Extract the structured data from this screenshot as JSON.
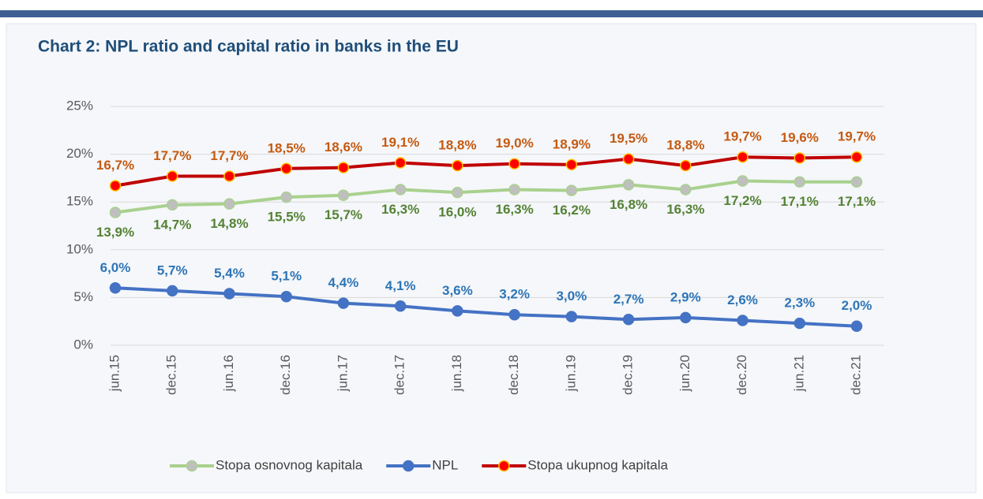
{
  "chart_data": {
    "type": "line",
    "title": "Chart 2: NPL ratio and  capital ratio in banks in the EU",
    "categories": [
      "jun.15",
      "dec.15",
      "jun.16",
      "dec.16",
      "jun.17",
      "dec.17",
      "jun.18",
      "dec.18",
      "jun.19",
      "dec.19",
      "jun.20",
      "dec.20",
      "jun.21",
      "dec.21"
    ],
    "ylim": [
      0,
      25
    ],
    "yticks": [
      {
        "value": 0,
        "label": "0%"
      },
      {
        "value": 5,
        "label": "5%"
      },
      {
        "value": 10,
        "label": "10%"
      },
      {
        "value": 15,
        "label": "15%"
      },
      {
        "value": 20,
        "label": "20%"
      },
      {
        "value": 25,
        "label": "25%"
      }
    ],
    "grid": true,
    "legend": "bottom",
    "series": [
      {
        "name": "Stopa osnovnog kapitala",
        "color": "#a9d18e",
        "marker_color": "#bfbfbf",
        "label_color": "#548235",
        "label_position": "below",
        "values": [
          13.9,
          14.7,
          14.8,
          15.5,
          15.7,
          16.3,
          16.0,
          16.3,
          16.2,
          16.8,
          16.3,
          17.2,
          17.1,
          17.1
        ],
        "value_labels": [
          "13,9%",
          "14,7%",
          "14,8%",
          "15,5%",
          "15,7%",
          "16,3%",
          "16,0%",
          "16,3%",
          "16,2%",
          "16,8%",
          "16,3%",
          "17,2%",
          "17,1%",
          "17,1%"
        ]
      },
      {
        "name": "NPL",
        "color": "#4472c4",
        "marker_color": "#4472c4",
        "label_color": "#2e75b6",
        "label_position": "above",
        "values": [
          6.0,
          5.7,
          5.4,
          5.1,
          4.4,
          4.1,
          3.6,
          3.2,
          3.0,
          2.7,
          2.9,
          2.6,
          2.3,
          2.0
        ],
        "value_labels": [
          "6,0%",
          "5,7%",
          "5,4%",
          "5,1%",
          "4,4%",
          "4,1%",
          "3,6%",
          "3,2%",
          "3,0%",
          "2,7%",
          "2,9%",
          "2,6%",
          "2,3%",
          "2,0%"
        ]
      },
      {
        "name": "Stopa ukupnog kapitala",
        "color": "#c00000",
        "marker_color": "#ff0000",
        "label_color": "#c55a11",
        "label_position": "above",
        "values": [
          16.7,
          17.7,
          17.7,
          18.5,
          18.6,
          19.1,
          18.8,
          19.0,
          18.9,
          19.5,
          18.8,
          19.7,
          19.6,
          19.7
        ],
        "value_labels": [
          "16,7%",
          "17,7%",
          "17,7%",
          "18,5%",
          "18,6%",
          "19,1%",
          "18,8%",
          "19,0%",
          "18,9%",
          "19,5%",
          "18,8%",
          "19,7%",
          "19,6%",
          "19,7%"
        ]
      }
    ]
  }
}
